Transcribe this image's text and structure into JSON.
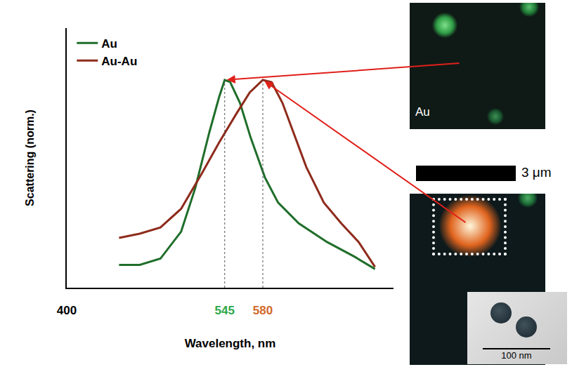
{
  "chart_data": {
    "type": "line",
    "x_label": "Wavelength, nm",
    "y_label": "Scattering (norm.)",
    "series": [
      {
        "name": "Au",
        "color": "#1f6e2a",
        "x": [
          448,
          467,
          486,
          505,
          518,
          531,
          540,
          545,
          550,
          559,
          569,
          582,
          594,
          613,
          639,
          664,
          683
        ],
        "values": [
          0.11,
          0.11,
          0.14,
          0.27,
          0.48,
          0.75,
          0.92,
          1.0,
          0.99,
          0.89,
          0.72,
          0.53,
          0.41,
          0.31,
          0.22,
          0.15,
          0.09
        ]
      },
      {
        "name": "Au-Au",
        "color": "#8e2b1c",
        "x": [
          448,
          467,
          486,
          505,
          524,
          540,
          556,
          568,
          580,
          588,
          598,
          608,
          620,
          636,
          652,
          668,
          683
        ],
        "values": [
          0.24,
          0.26,
          0.29,
          0.38,
          0.55,
          0.7,
          0.84,
          0.94,
          1.0,
          0.99,
          0.89,
          0.75,
          0.58,
          0.41,
          0.31,
          0.22,
          0.1
        ]
      }
    ],
    "xlim": [
      400,
      700
    ],
    "xticks": [
      400,
      545,
      580
    ],
    "ylim": [
      0,
      1.25
    ],
    "yticks": [],
    "tick_labels": "x",
    "grid": false,
    "legend": "upper left",
    "annotations": [
      "Au",
      "3 μm",
      "100 nm"
    ]
  }
}
